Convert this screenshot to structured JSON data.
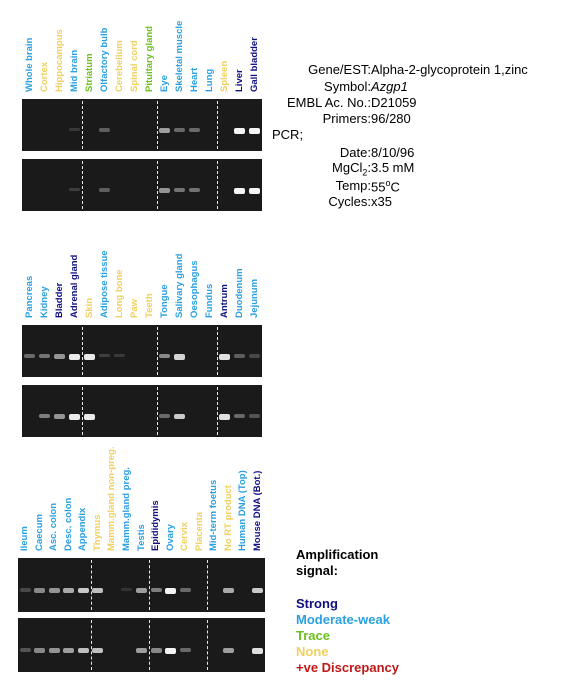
{
  "colors": {
    "strong": "#101080",
    "moderate": "#2aa0e0",
    "trace": "#6cc020",
    "none": "#f0d060",
    "discrepancy": "#c01818"
  },
  "panels": [
    {
      "lanes": [
        {
          "label": "Whole brain",
          "level": "moderate"
        },
        {
          "label": "Cortex",
          "level": "none"
        },
        {
          "label": "Hippocampus",
          "level": "none"
        },
        {
          "label": "Mid brain",
          "level": "moderate"
        },
        {
          "label": "Striatum",
          "level": "trace"
        },
        {
          "label": "Olfactory bulb",
          "level": "moderate"
        },
        {
          "label": "Cerebellum",
          "level": "none"
        },
        {
          "label": "Spinal cord",
          "level": "none"
        },
        {
          "label": "Pituitary gland",
          "level": "trace"
        },
        {
          "label": "Eye",
          "level": "moderate"
        },
        {
          "label": "Skeletal muscle",
          "level": "moderate"
        },
        {
          "label": "Heart",
          "level": "moderate"
        },
        {
          "label": "Lung",
          "level": "moderate"
        },
        {
          "label": "Spleen",
          "level": "none"
        },
        {
          "label": "Liver",
          "level": "strong"
        },
        {
          "label": "Gall bladder",
          "level": "strong"
        }
      ],
      "separators_after": [
        3,
        8,
        12
      ],
      "gel_top": [
        0,
        0,
        0,
        0.08,
        0,
        0.25,
        0,
        0,
        0,
        0.55,
        0.3,
        0.3,
        0,
        0,
        0.95,
        0.95
      ],
      "gel_bottom": [
        0,
        0,
        0,
        0.1,
        0,
        0.25,
        0,
        0,
        0,
        0.5,
        0.35,
        0.35,
        0,
        0,
        0.95,
        0.95
      ]
    },
    {
      "lanes": [
        {
          "label": "Pancreas",
          "level": "moderate"
        },
        {
          "label": "Kidney",
          "level": "moderate"
        },
        {
          "label": "Bladder",
          "level": "strong"
        },
        {
          "label": "Adrenal gland",
          "level": "strong"
        },
        {
          "label": "Skin",
          "level": "none"
        },
        {
          "label": "Adipose tissue",
          "level": "moderate"
        },
        {
          "label": "Long bone",
          "level": "none"
        },
        {
          "label": "Paw",
          "level": "none"
        },
        {
          "label": "Teeth",
          "level": "none"
        },
        {
          "label": "Tongue",
          "level": "moderate"
        },
        {
          "label": "Salivary gland",
          "level": "moderate"
        },
        {
          "label": "Oesophagus",
          "level": "moderate"
        },
        {
          "label": "Fundus",
          "level": "moderate"
        },
        {
          "label": "Antrum",
          "level": "strong"
        },
        {
          "label": "Duodenum",
          "level": "moderate"
        },
        {
          "label": "Jejunum",
          "level": "moderate"
        }
      ],
      "separators_after": [
        3,
        8,
        12
      ],
      "gel_top": [
        0.3,
        0.35,
        0.5,
        0.9,
        0.9,
        0.1,
        0.08,
        0,
        0,
        0.45,
        0.8,
        0,
        0,
        0.85,
        0.25,
        0.15
      ],
      "gel_bottom": [
        0,
        0.4,
        0.5,
        0.9,
        0.9,
        0,
        0,
        0,
        0,
        0.3,
        0.75,
        0,
        0,
        0.85,
        0.3,
        0.2
      ]
    },
    {
      "lanes": [
        {
          "label": "Ileum",
          "level": "moderate"
        },
        {
          "label": "Caecum",
          "level": "moderate"
        },
        {
          "label": "Asc. colon",
          "level": "moderate"
        },
        {
          "label": "Desc. colon",
          "level": "moderate"
        },
        {
          "label": "Appendix",
          "level": "moderate"
        },
        {
          "label": "Thymus",
          "level": "none"
        },
        {
          "label": "Mamm.gland non-preg.",
          "level": "none"
        },
        {
          "label": "Mamm.gland preg.",
          "level": "moderate"
        },
        {
          "label": "Testis",
          "level": "moderate"
        },
        {
          "label": "Epididymis",
          "level": "strong"
        },
        {
          "label": "Ovary",
          "level": "moderate"
        },
        {
          "label": "Cervix",
          "level": "none"
        },
        {
          "label": "Placenta",
          "level": "none"
        },
        {
          "label": "Mid-term foetus",
          "level": "moderate"
        },
        {
          "label": "No RT product",
          "level": "none"
        },
        {
          "label": "Human DNA (Top)",
          "level": "moderate"
        },
        {
          "label": "Mouse DNA (Bot.)",
          "level": "strong"
        }
      ],
      "separators_after": [
        4,
        8,
        12
      ],
      "gel_top": [
        0.15,
        0.45,
        0.5,
        0.6,
        0.75,
        0.7,
        0,
        0.05,
        0.55,
        0.4,
        0.95,
        0.3,
        0,
        0,
        0.6,
        0,
        0.75
      ],
      "gel_bottom": [
        0.2,
        0.45,
        0.5,
        0.55,
        0.7,
        0.7,
        0,
        0,
        0.55,
        0.45,
        0.95,
        0.3,
        0,
        0,
        0.55,
        0,
        0.85
      ]
    }
  ],
  "info": {
    "gene_key": "Gene/EST:",
    "gene_val": "Alpha-2-glycoprotein 1,zinc",
    "symbol_key": "Symbol:",
    "symbol_val": "Azgp1",
    "embl_key": "EMBL Ac. No.:",
    "embl_val": "D21059",
    "primers_key": "Primers:",
    "primers_val": "96/280",
    "pcr_key": "PCR;",
    "date_key": "Date:",
    "date_val": "8/10/96",
    "mgcl_key": "MgCl",
    "mgcl_sub": "2",
    "mgcl_colon": ":",
    "mgcl_val": "3.5 mM",
    "temp_key": "Temp:",
    "temp_val_num": "55",
    "temp_val_sup": "o",
    "temp_val_unit": "C",
    "cycles_key": "Cycles:",
    "cycles_val": "x35"
  },
  "legend": {
    "title_line1": "Amplification",
    "title_line2": "signal:",
    "strong": "Strong",
    "moderate": "Moderate-weak",
    "trace": "Trace",
    "none": "None",
    "discrepancy": "+ve Discrepancy"
  }
}
